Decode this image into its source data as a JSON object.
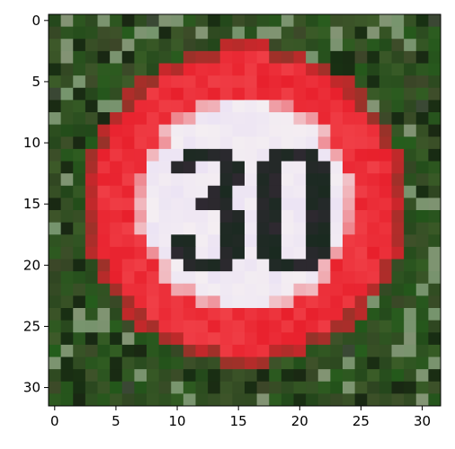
{
  "image": {
    "grid_size": 32,
    "colors": {
      "background_vegetation": "#2f4a25",
      "sign_red": "#e8202c",
      "sign_white": "#f4eef2",
      "digit_dark": "#1a2a20"
    },
    "digits_shown": "30"
  },
  "axes": {
    "x_ticks": [
      "0",
      "5",
      "10",
      "15",
      "20",
      "25",
      "30"
    ],
    "y_ticks": [
      "0",
      "5",
      "10",
      "15",
      "20",
      "25",
      "30"
    ]
  }
}
